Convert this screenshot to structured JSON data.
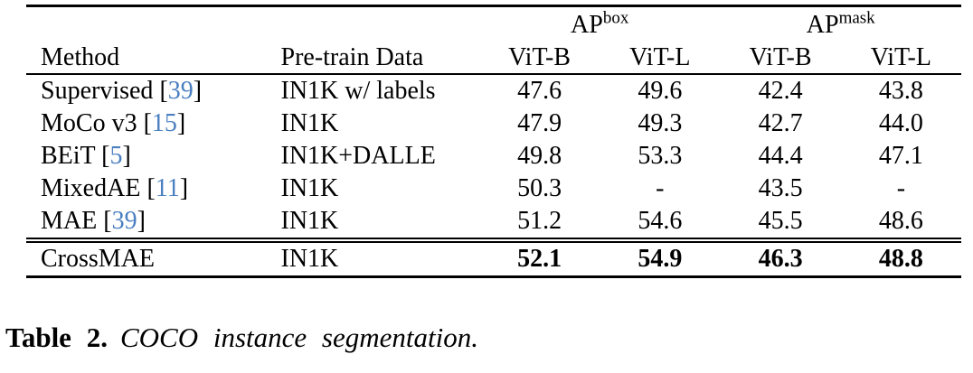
{
  "table": {
    "group_headers": [
      {
        "base": "AP",
        "sup": "box"
      },
      {
        "base": "AP",
        "sup": "mask"
      }
    ],
    "col_headers": {
      "method": "Method",
      "pretrain": "Pre-train Data",
      "sub": [
        "ViT-B",
        "ViT-L",
        "ViT-B",
        "ViT-L"
      ]
    },
    "rows": [
      {
        "method": "Supervised",
        "cite_open": "[",
        "cite": "39",
        "cite_close": "]",
        "pretrain": "IN1K w/ labels",
        "values": [
          "47.6",
          "49.6",
          "42.4",
          "43.8"
        ]
      },
      {
        "method": "MoCo v3",
        "cite_open": "[",
        "cite": "15",
        "cite_close": "]",
        "pretrain": "IN1K",
        "values": [
          "47.9",
          "49.3",
          "42.7",
          "44.0"
        ]
      },
      {
        "method": "BEiT",
        "cite_open": "[",
        "cite": "5",
        "cite_close": "]",
        "pretrain": "IN1K+DALLE",
        "values": [
          "49.8",
          "53.3",
          "44.4",
          "47.1"
        ]
      },
      {
        "method": "MixedAE",
        "cite_open": "[",
        "cite": "11",
        "cite_close": "]",
        "pretrain": "IN1K",
        "values": [
          "50.3",
          "-",
          "43.5",
          "-"
        ]
      },
      {
        "method": "MAE",
        "cite_open": "[",
        "cite": "39",
        "cite_close": "]",
        "pretrain": "IN1K",
        "values": [
          "51.2",
          "54.6",
          "45.5",
          "48.6"
        ]
      }
    ],
    "highlight_row": {
      "method": "CrossMAE",
      "pretrain": "IN1K",
      "values": [
        "52.1",
        "54.9",
        "46.3",
        "48.8"
      ]
    }
  },
  "caption": {
    "label": "Table 2.",
    "text": "COCO instance segmentation."
  },
  "colors": {
    "citation_link": "#4a7fc0",
    "text": "#000000",
    "background": "#ffffff"
  }
}
